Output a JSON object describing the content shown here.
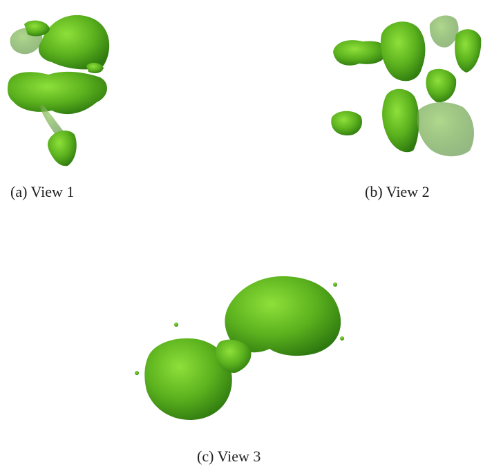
{
  "figure": {
    "subfigures": [
      {
        "caption": "(a) View 1"
      },
      {
        "caption": "(b) View 2"
      },
      {
        "caption": "(c) View 3"
      }
    ]
  }
}
